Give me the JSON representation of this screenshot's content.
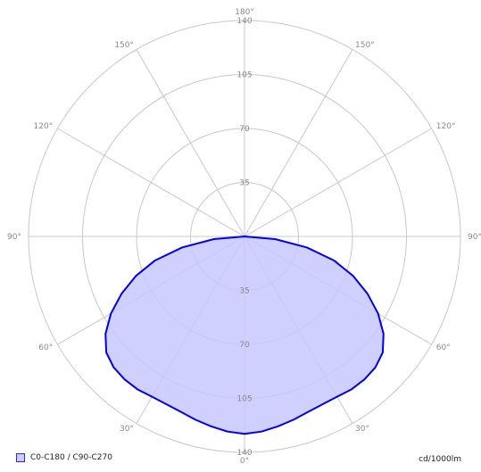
{
  "chart_data": {
    "type": "polar",
    "radial_axis": {
      "max": 140,
      "ticks": [
        35,
        70,
        105,
        140
      ],
      "unit": "cd/1000lm"
    },
    "angle_labels": {
      "0": "0°",
      "30": "30°",
      "60": "60°",
      "90": "90°",
      "120": "120°",
      "150": "150°",
      "180": "180°"
    },
    "legend": [
      "C0-C180 / C90-C270"
    ],
    "series": [
      {
        "name": "C0-C180 / C90-C270",
        "angle_deg": [
          0,
          5,
          10,
          15,
          20,
          25,
          30,
          35,
          40,
          45,
          50,
          55,
          60,
          65,
          70,
          75,
          80,
          85,
          90
        ],
        "cd_per_klm": [
          128,
          127,
          125,
          123,
          121,
          120,
          120,
          121,
          121,
          120,
          117,
          110,
          100,
          88,
          75,
          60,
          41,
          20,
          0
        ],
        "color": "#0000ee",
        "fill": "#c8c8ff"
      }
    ]
  },
  "legend_label": "C0-C180 / C90-C270",
  "unit_label": "cd/1000lm"
}
